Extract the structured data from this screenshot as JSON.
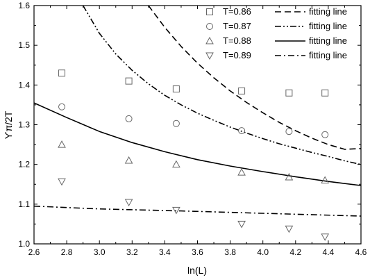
{
  "chart_data": {
    "type": "scatter",
    "title": "",
    "xlabel": "ln(L)",
    "ylabel": "ϒπ/2T",
    "xlim": [
      2.6,
      4.6
    ],
    "ylim": [
      1.0,
      1.6
    ],
    "xticks": [
      2.6,
      2.8,
      3.0,
      3.2,
      3.4,
      3.6,
      3.8,
      4.0,
      4.2,
      4.4,
      4.6
    ],
    "yticks": [
      1.0,
      1.1,
      1.2,
      1.3,
      1.4,
      1.5,
      1.6
    ],
    "xtick_labels": [
      "2.6",
      "2.8",
      "3.0",
      "3.2",
      "3.4",
      "3.6",
      "3.8",
      "4.0",
      "4.2",
      "4.4",
      "4.6"
    ],
    "ytick_labels": [
      "1.0",
      "1.1",
      "1.2",
      "1.3",
      "1.4",
      "1.5",
      "1.6"
    ],
    "grid": false,
    "legend_position": "top-right",
    "x": [
      2.77,
      3.18,
      3.47,
      3.87,
      4.16,
      4.38
    ],
    "series": [
      {
        "name": "T=0.86",
        "marker": "square",
        "values": [
          1.43,
          1.41,
          1.39,
          1.385,
          1.38,
          1.38
        ],
        "fit": {
          "name": "fitting line",
          "dash": "dashed",
          "x": [
            3.3,
            3.4,
            3.5,
            3.6,
            3.7,
            3.8,
            3.9,
            4.0,
            4.1,
            4.2,
            4.3,
            4.4,
            4.5,
            4.6
          ],
          "y": [
            1.6,
            1.545,
            1.497,
            1.455,
            1.418,
            1.385,
            1.356,
            1.33,
            1.306,
            1.285,
            1.266,
            1.25,
            1.238,
            1.24
          ]
        }
      },
      {
        "name": "T=0.87",
        "marker": "circle",
        "values": [
          1.345,
          1.315,
          1.303,
          1.285,
          1.283,
          1.275
        ],
        "fit": {
          "name": "fitting line",
          "dash": "dashdotdot",
          "x": [
            2.9,
            3.0,
            3.1,
            3.2,
            3.3,
            3.4,
            3.5,
            3.6,
            3.7,
            3.8,
            3.9,
            4.0,
            4.1,
            4.2,
            4.3,
            4.4,
            4.5,
            4.6
          ],
          "y": [
            1.6,
            1.53,
            1.478,
            1.437,
            1.403,
            1.374,
            1.35,
            1.329,
            1.311,
            1.294,
            1.279,
            1.265,
            1.252,
            1.241,
            1.23,
            1.22,
            1.209,
            1.2
          ]
        }
      },
      {
        "name": "T=0.88",
        "marker": "triangle-up",
        "values": [
          1.25,
          1.21,
          1.2,
          1.18,
          1.168,
          1.16
        ],
        "fit": {
          "name": "fitting line",
          "dash": "solid",
          "x": [
            2.6,
            2.8,
            3.0,
            3.2,
            3.4,
            3.6,
            3.8,
            4.0,
            4.2,
            4.4,
            4.6
          ],
          "y": [
            1.355,
            1.318,
            1.283,
            1.255,
            1.232,
            1.212,
            1.196,
            1.182,
            1.169,
            1.157,
            1.147
          ]
        }
      },
      {
        "name": "T=0.89",
        "marker": "triangle-down",
        "values": [
          1.157,
          1.105,
          1.085,
          1.05,
          1.038,
          1.018
        ],
        "fit": {
          "name": "fitting line",
          "dash": "dashdot",
          "x": [
            2.6,
            3.0,
            3.5,
            4.0,
            4.6
          ],
          "y": [
            1.095,
            1.088,
            1.083,
            1.077,
            1.07
          ]
        }
      }
    ]
  }
}
